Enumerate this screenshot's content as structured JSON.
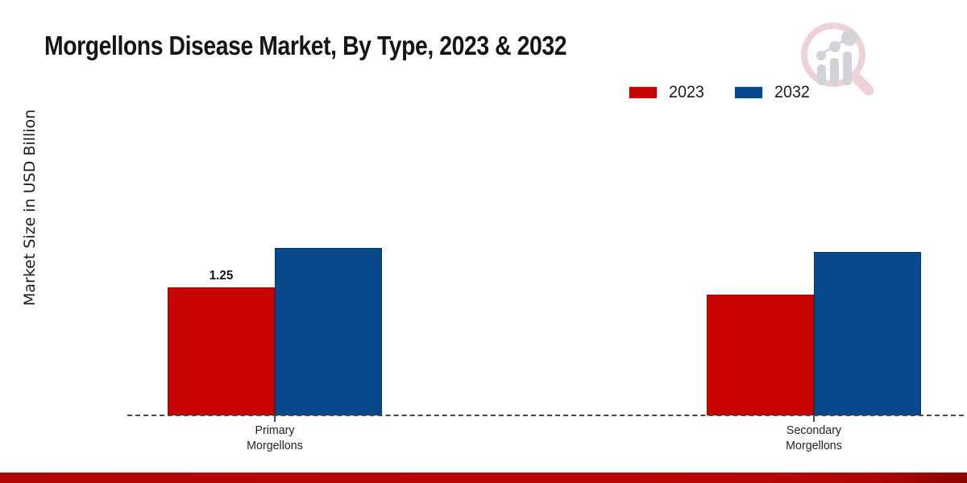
{
  "chart_data": {
    "type": "bar",
    "title": "Morgellons Disease Market, By Type, 2023 & 2032",
    "ylabel": "Market Size in USD Billion",
    "xlabel": "",
    "categories": [
      "Primary Morgellons",
      "Secondary Morgellons"
    ],
    "series": [
      {
        "name": "2023",
        "color": "#c90404",
        "values": [
          1.25,
          1.18
        ]
      },
      {
        "name": "2032",
        "color": "#07498a",
        "values": [
          1.64,
          1.6
        ]
      }
    ],
    "value_labels": [
      {
        "category_index": 0,
        "series_index": 0,
        "text": "1.25"
      }
    ],
    "ylim": [
      0,
      3.2
    ],
    "grid": false,
    "legend_position": "top-right",
    "baseline_style": "dashed"
  },
  "icons": {
    "watermark": "magnifier-bar-chart-logo"
  },
  "colors": {
    "footer_accent": "#b20505",
    "background": "#e9eaec",
    "text": "#1a1a1a"
  }
}
